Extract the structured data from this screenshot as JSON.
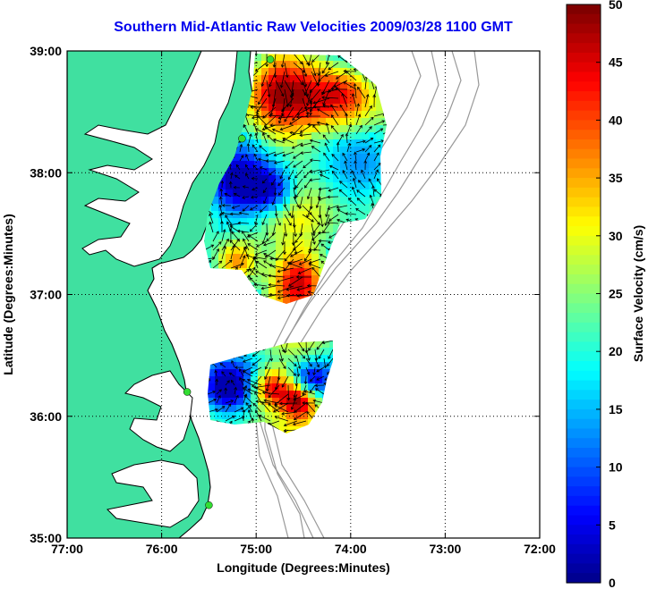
{
  "title": "Southern Mid-Atlantic Raw Velocities 2009/03/28 1100 GMT",
  "x_axis": {
    "label": "Longitude (Degrees:Minutes)",
    "ticks": [
      "77:00",
      "76:00",
      "75:00",
      "74:00",
      "73:00",
      "72:00"
    ],
    "values": [
      -77,
      -76,
      -75,
      -74,
      -73,
      -72
    ]
  },
  "y_axis": {
    "label": "Latitude (Degrees:Minutes)",
    "ticks": [
      "39:00",
      "38:00",
      "37:00",
      "36:00",
      "35:00"
    ],
    "values": [
      39,
      38,
      37,
      36,
      35
    ]
  },
  "colorbar": {
    "label": "Surface Velocity (cm/s)",
    "ticks": [
      "50",
      "45",
      "40",
      "35",
      "30",
      "25",
      "20",
      "15",
      "10",
      "5",
      "0"
    ],
    "range": [
      0,
      50
    ]
  },
  "colors": {
    "land": "#40e0a0",
    "title": "#0000ee",
    "grid": "#000000",
    "bathymetry": "#999999",
    "station": "#33dd33"
  },
  "stations": [
    {
      "lon": -74.85,
      "lat": 38.93
    },
    {
      "lon": -75.15,
      "lat": 38.28
    },
    {
      "lon": -75.73,
      "lat": 36.2
    },
    {
      "lon": -75.5,
      "lat": 35.27
    }
  ],
  "chart_data": {
    "type": "vector_field_map",
    "xlim": [
      -77,
      -72
    ],
    "ylim": [
      35,
      39
    ],
    "clim": [
      0,
      50
    ],
    "grid": true
  }
}
